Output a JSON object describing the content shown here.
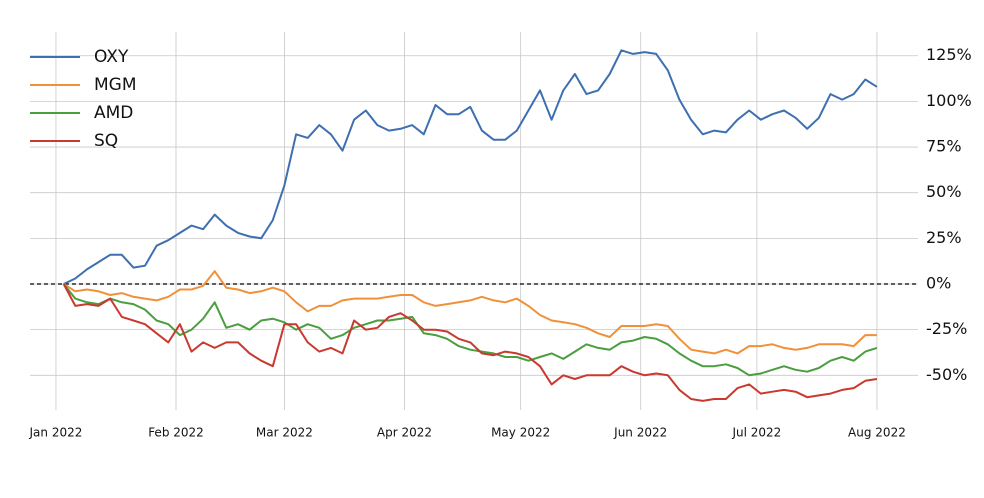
{
  "chart_data": {
    "type": "line",
    "x": [
      2,
      5,
      8,
      11,
      14,
      17,
      20,
      23,
      26,
      29,
      32,
      35,
      38,
      41,
      44,
      47,
      50,
      53,
      56,
      59,
      62,
      65,
      68,
      71,
      74,
      77,
      80,
      83,
      86,
      89,
      92,
      95,
      98,
      101,
      104,
      107,
      110,
      113,
      116,
      119,
      122,
      125,
      128,
      131,
      134,
      137,
      140,
      143,
      146,
      149,
      152,
      155,
      158,
      161,
      164,
      167,
      170,
      173,
      176,
      179,
      182,
      185,
      188,
      191,
      194,
      197,
      200,
      203,
      206,
      209,
      212
    ],
    "series": [
      {
        "name": "OXY",
        "color": "#3e6fb0",
        "values": [
          0,
          3,
          8,
          12,
          16,
          16,
          9,
          10,
          21,
          24,
          28,
          32,
          30,
          38,
          32,
          28,
          26,
          25,
          35,
          54,
          82,
          80,
          87,
          82,
          73,
          90,
          95,
          87,
          84,
          85,
          87,
          82,
          98,
          93,
          93,
          97,
          84,
          79,
          79,
          84,
          95,
          106,
          90,
          106,
          115,
          104,
          106,
          115,
          128,
          126,
          127,
          126,
          117,
          101,
          90,
          82,
          84,
          83,
          90,
          95,
          90,
          93,
          95,
          91,
          85,
          91,
          104,
          101,
          104,
          112,
          108
        ]
      },
      {
        "name": "MGM",
        "color": "#f0913a",
        "values": [
          0,
          -4,
          -3,
          -4,
          -6,
          -5,
          -7,
          -8,
          -9,
          -7,
          -3,
          -3,
          -1,
          7,
          -2,
          -3,
          -5,
          -4,
          -2,
          -4,
          -10,
          -15,
          -12,
          -12,
          -9,
          -8,
          -8,
          -8,
          -7,
          -6,
          -6,
          -10,
          -12,
          -11,
          -10,
          -9,
          -7,
          -9,
          -10,
          -8,
          -12,
          -17,
          -20,
          -21,
          -22,
          -24,
          -27,
          -29,
          -23,
          -23,
          -23,
          -22,
          -23,
          -30,
          -36,
          -37,
          -38,
          -36,
          -38,
          -34,
          -34,
          -33,
          -35,
          -36,
          -35,
          -33,
          -33,
          -33,
          -34,
          -28,
          -28
        ]
      },
      {
        "name": "AMD",
        "color": "#4a9e3f",
        "values": [
          0,
          -8,
          -10,
          -11,
          -8,
          -10,
          -11,
          -14,
          -20,
          -22,
          -28,
          -25,
          -19,
          -10,
          -24,
          -22,
          -25,
          -20,
          -19,
          -21,
          -25,
          -22,
          -24,
          -30,
          -28,
          -24,
          -22,
          -20,
          -20,
          -19,
          -18,
          -27,
          -28,
          -30,
          -34,
          -36,
          -37,
          -38,
          -40,
          -40,
          -42,
          -40,
          -38,
          -41,
          -37,
          -33,
          -35,
          -36,
          -32,
          -31,
          -29,
          -30,
          -33,
          -38,
          -42,
          -45,
          -45,
          -44,
          -46,
          -50,
          -49,
          -47,
          -45,
          -47,
          -48,
          -46,
          -42,
          -40,
          -42,
          -37,
          -35
        ]
      },
      {
        "name": "SQ",
        "color": "#c9392f",
        "values": [
          0,
          -12,
          -11,
          -12,
          -8,
          -18,
          -20,
          -22,
          -27,
          -32,
          -22,
          -37,
          -32,
          -35,
          -32,
          -32,
          -38,
          -42,
          -45,
          -22,
          -22,
          -32,
          -37,
          -35,
          -38,
          -20,
          -25,
          -24,
          -18,
          -16,
          -20,
          -25,
          -25,
          -26,
          -30,
          -32,
          -38,
          -39,
          -37,
          -38,
          -40,
          -45,
          -55,
          -50,
          -52,
          -50,
          -50,
          -50,
          -45,
          -48,
          -50,
          -49,
          -50,
          -58,
          -63,
          -64,
          -63,
          -63,
          -57,
          -55,
          -60,
          -59,
          -58,
          -59,
          -62,
          -61,
          -60,
          -58,
          -57,
          -53,
          -52
        ]
      }
    ],
    "xlim": [
      -6.7,
      222.6
    ],
    "xticks": [
      {
        "value": 0,
        "label": "Jan 2022"
      },
      {
        "value": 31,
        "label": "Feb 2022"
      },
      {
        "value": 59,
        "label": "Mar 2022"
      },
      {
        "value": 90,
        "label": "Apr 2022"
      },
      {
        "value": 120,
        "label": "May 2022"
      },
      {
        "value": 151,
        "label": "Jun 2022"
      },
      {
        "value": 181,
        "label": "Jul 2022"
      },
      {
        "value": 212,
        "label": "Aug 2022"
      }
    ],
    "ylim": [
      -69,
      138
    ],
    "yticks": [
      {
        "value": -50,
        "label": "-50%"
      },
      {
        "value": -25,
        "label": "-25%"
      },
      {
        "value": 0,
        "label": "0%"
      },
      {
        "value": 25,
        "label": "25%"
      },
      {
        "value": 50,
        "label": "50%"
      },
      {
        "value": 75,
        "label": "75%"
      },
      {
        "value": 100,
        "label": "100%"
      },
      {
        "value": 125,
        "label": "125%"
      }
    ],
    "reference_line": 0,
    "grid": true,
    "legend": "upper left"
  }
}
